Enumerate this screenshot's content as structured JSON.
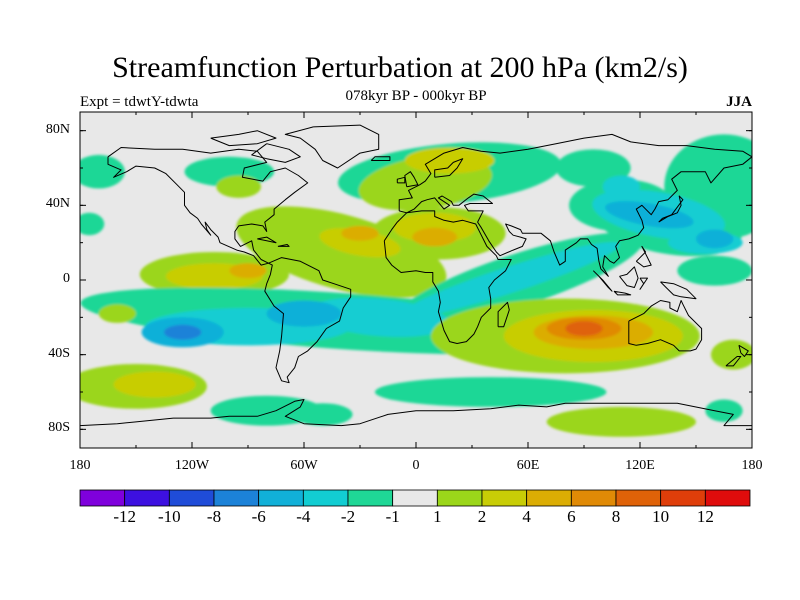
{
  "title": "Streamfunction Perturbation at 200 hPa (km2/s)",
  "experiment": "Expt = tdwtY-tdwta",
  "subtitle": "078kyr BP - 000kyr BP",
  "season": "JJA",
  "map": {
    "projection": "cylindrical-equidistant",
    "lon_range": [
      -180,
      180
    ],
    "lat_range": [
      -90,
      90
    ],
    "lat_ticks": [
      {
        "value": 80,
        "label": "80N"
      },
      {
        "value": 40,
        "label": "40N"
      },
      {
        "value": 0,
        "label": "0"
      },
      {
        "value": -40,
        "label": "40S"
      },
      {
        "value": -80,
        "label": "80S"
      }
    ],
    "lon_ticks": [
      {
        "value": -180,
        "label": "180"
      },
      {
        "value": -120,
        "label": "120W"
      },
      {
        "value": -60,
        "label": "60W"
      },
      {
        "value": 0,
        "label": "0"
      },
      {
        "value": 60,
        "label": "60E"
      },
      {
        "value": 120,
        "label": "120E"
      },
      {
        "value": 180,
        "label": "180"
      }
    ],
    "background_color": "#e8e8e8",
    "coastline_color": "#000000"
  },
  "colorbar": {
    "colors": [
      "#7f00dc",
      "#3d10e0",
      "#1f4cd8",
      "#1c82d8",
      "#11b0d8",
      "#12cdd2",
      "#1fd796",
      "#e8e8e8",
      "#9bd61a",
      "#c8cd06",
      "#dbad04",
      "#e08a06",
      "#df6208",
      "#df3e0a",
      "#df0c0c"
    ],
    "labels": [
      "-12",
      "-10",
      "-8",
      "-6",
      "-4",
      "-2",
      "-1",
      "1",
      "2",
      "4",
      "6",
      "8",
      "10",
      "12"
    ]
  }
}
